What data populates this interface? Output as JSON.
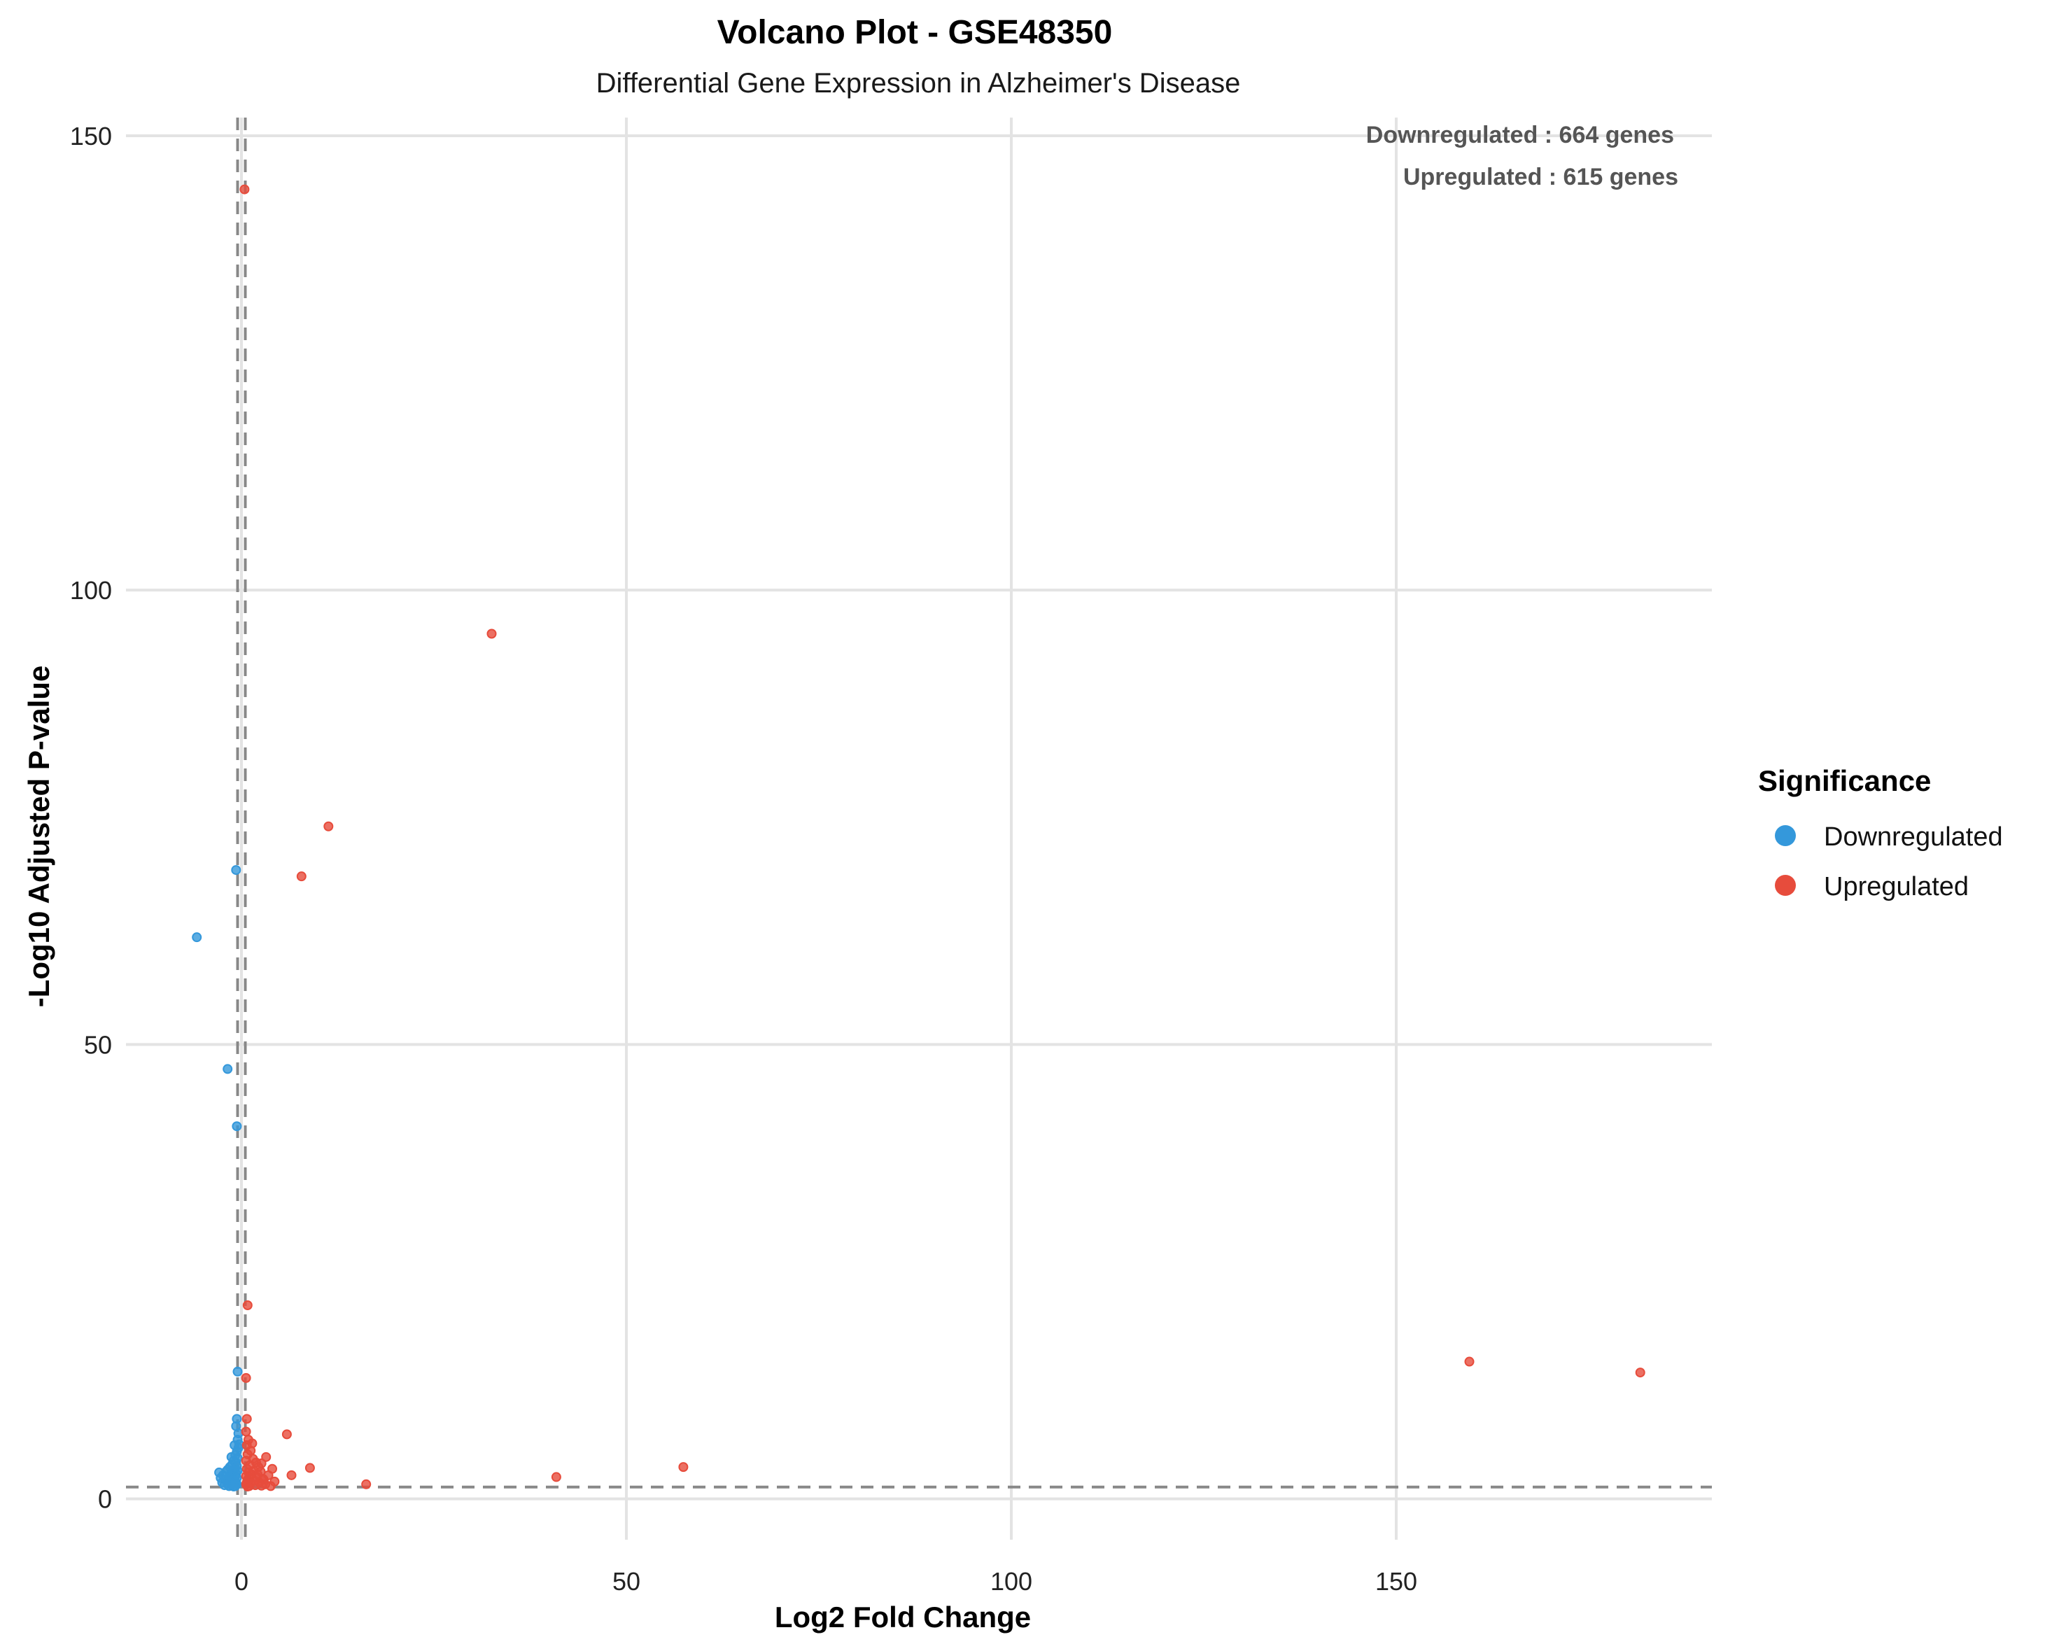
{
  "colors": {
    "Downregulated": "#3498db",
    "Upregulated": "#e74c3c"
  },
  "chart_data": {
    "type": "scatter",
    "title": "Volcano Plot - GSE48350",
    "subtitle": "Differential Gene Expression in Alzheimer's Disease",
    "xlabel": "Log2 Fold Change",
    "ylabel": "-Log10 Adjusted P-value",
    "xlim": [
      -15,
      191
    ],
    "ylim": [
      -4.5,
      152
    ],
    "xticks": [
      0,
      50,
      100,
      150
    ],
    "yticks": [
      0,
      50,
      100,
      150
    ],
    "grid": true,
    "thresholds": {
      "x": [
        -0.5,
        0.5
      ],
      "y": 1.3
    },
    "annotations": [
      "Downregulated : 664 genes",
      "Upregulated : 615 genes"
    ],
    "legend": {
      "title": "Significance",
      "position": "right",
      "entries": [
        "Downregulated",
        "Upregulated"
      ]
    },
    "series": [
      {
        "name": "Downregulated",
        "points": [
          [
            -5.8,
            61.8
          ],
          [
            -1.8,
            47.3
          ],
          [
            -0.7,
            69.2
          ],
          [
            -0.6,
            41.0
          ],
          [
            -0.5,
            14.0
          ],
          [
            -0.6,
            8.8
          ],
          [
            -0.7,
            8.0
          ],
          [
            -0.4,
            7.2
          ],
          [
            -0.5,
            6.5
          ],
          [
            -0.3,
            6.0
          ],
          [
            -0.4,
            5.6
          ],
          [
            -0.6,
            5.2
          ],
          [
            -0.8,
            4.8
          ],
          [
            -0.5,
            4.5
          ],
          [
            -1.0,
            4.2
          ],
          [
            -0.7,
            4.0
          ],
          [
            -1.2,
            3.8
          ],
          [
            -0.6,
            3.6
          ],
          [
            -1.5,
            3.5
          ],
          [
            -0.9,
            3.3
          ],
          [
            -1.8,
            3.2
          ],
          [
            -0.5,
            3.1
          ],
          [
            -2.0,
            3.0
          ],
          [
            -1.1,
            2.9
          ],
          [
            -0.7,
            2.8
          ],
          [
            -1.4,
            2.7
          ],
          [
            -2.4,
            2.6
          ],
          [
            -0.8,
            2.5
          ],
          [
            -1.6,
            2.4
          ],
          [
            -0.6,
            2.3
          ],
          [
            -1.2,
            2.2
          ],
          [
            -2.1,
            2.1
          ],
          [
            -0.9,
            2.0
          ],
          [
            -1.5,
            1.9
          ],
          [
            -0.7,
            1.8
          ],
          [
            -2.5,
            1.8
          ],
          [
            -1.0,
            1.7
          ],
          [
            -1.8,
            1.6
          ],
          [
            -0.6,
            1.6
          ],
          [
            -1.3,
            1.5
          ],
          [
            -2.2,
            1.5
          ],
          [
            -0.8,
            1.4
          ],
          [
            -1.6,
            1.4
          ],
          [
            -1.0,
            1.35
          ],
          [
            -2.7,
            2.3
          ],
          [
            -2.9,
            2.9
          ],
          [
            -1.3,
            4.6
          ],
          [
            -0.9,
            5.9
          ]
        ]
      },
      {
        "name": "Upregulated",
        "points": [
          [
            0.4,
            144.1
          ],
          [
            32.5,
            95.2
          ],
          [
            11.3,
            74.0
          ],
          [
            7.8,
            68.5
          ],
          [
            0.8,
            21.3
          ],
          [
            0.6,
            13.3
          ],
          [
            159.5,
            15.1
          ],
          [
            181.7,
            13.9
          ],
          [
            57.4,
            3.5
          ],
          [
            40.9,
            2.4
          ],
          [
            16.2,
            1.6
          ],
          [
            0.7,
            8.8
          ],
          [
            5.9,
            7.1
          ],
          [
            8.9,
            3.4
          ],
          [
            6.5,
            2.6
          ],
          [
            4.0,
            3.3
          ],
          [
            3.2,
            4.6
          ],
          [
            2.6,
            3.9
          ],
          [
            2.9,
            2.1
          ],
          [
            0.6,
            7.4
          ],
          [
            0.9,
            6.5
          ],
          [
            0.7,
            5.9
          ],
          [
            1.2,
            5.3
          ],
          [
            0.8,
            4.9
          ],
          [
            1.5,
            4.4
          ],
          [
            0.6,
            4.2
          ],
          [
            1.9,
            4.0
          ],
          [
            1.1,
            3.7
          ],
          [
            2.2,
            3.5
          ],
          [
            0.7,
            3.3
          ],
          [
            1.6,
            3.1
          ],
          [
            2.5,
            3.0
          ],
          [
            0.9,
            2.9
          ],
          [
            1.3,
            2.7
          ],
          [
            3.5,
            2.6
          ],
          [
            0.6,
            2.5
          ],
          [
            2.0,
            2.4
          ],
          [
            1.0,
            2.3
          ],
          [
            2.8,
            2.2
          ],
          [
            0.8,
            2.1
          ],
          [
            1.7,
            2.0
          ],
          [
            4.3,
            1.9
          ],
          [
            0.7,
            1.8
          ],
          [
            2.3,
            1.8
          ],
          [
            1.2,
            1.7
          ],
          [
            3.1,
            1.6
          ],
          [
            0.6,
            1.6
          ],
          [
            1.8,
            1.5
          ],
          [
            2.6,
            1.45
          ],
          [
            1.0,
            1.4
          ],
          [
            3.8,
            1.4
          ],
          [
            0.8,
            1.35
          ],
          [
            1.4,
            6.1
          ],
          [
            2.1,
            2.7
          ]
        ]
      }
    ]
  }
}
